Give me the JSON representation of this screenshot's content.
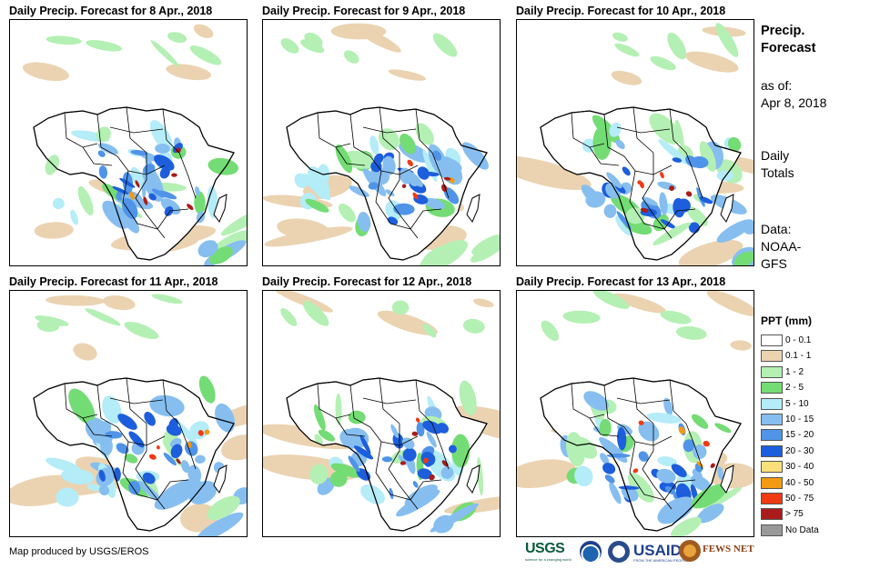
{
  "panels": [
    {
      "title": "Daily Precip. Forecast for 8 Apr., 2018"
    },
    {
      "title": "Daily Precip. Forecast for 9 Apr., 2018"
    },
    {
      "title": "Daily Precip. Forecast for 10 Apr., 2018"
    },
    {
      "title": "Daily Precip. Forecast for 11 Apr., 2018"
    },
    {
      "title": "Daily Precip. Forecast for 12 Apr., 2018"
    },
    {
      "title": "Daily Precip. Forecast for 13 Apr., 2018"
    }
  ],
  "info": {
    "title_line1": "Precip.",
    "title_line2": "Forecast",
    "asof_line1": "as of:",
    "asof_line2": "Apr 8, 2018",
    "totals_line1": "Daily",
    "totals_line2": "Totals",
    "data_line1": "Data:",
    "data_line2": "NOAA-",
    "data_line3": "GFS"
  },
  "legend": {
    "title": "PPT (mm)",
    "items": [
      {
        "label": "0 - 0.1",
        "color": "#ffffff"
      },
      {
        "label": "0.1 - 1",
        "color": "#ebd3b1"
      },
      {
        "label": "1 - 2",
        "color": "#b4f0b4"
      },
      {
        "label": "2 - 5",
        "color": "#74dc74"
      },
      {
        "label": "5 - 10",
        "color": "#b4ecf8"
      },
      {
        "label": "10 - 15",
        "color": "#86bef0"
      },
      {
        "label": "15 - 20",
        "color": "#4f94e8"
      },
      {
        "label": "20 - 30",
        "color": "#1c5edc"
      },
      {
        "label": "30 - 40",
        "color": "#fae07a"
      },
      {
        "label": "40 - 50",
        "color": "#f29a12"
      },
      {
        "label": "50 - 75",
        "color": "#ef3a12"
      },
      {
        "label": "> 75",
        "color": "#aa1c1c"
      },
      {
        "label": "No Data",
        "color": "#999999"
      }
    ]
  },
  "credit": "Map produced by USGS/EROS",
  "logos": {
    "usgs": "USGS",
    "usgs_tagline": "science for a changing world",
    "usaid": "USAID",
    "usaid_tagline": "FROM THE AMERICAN PEOPLE",
    "fews": "FEWS NET"
  }
}
